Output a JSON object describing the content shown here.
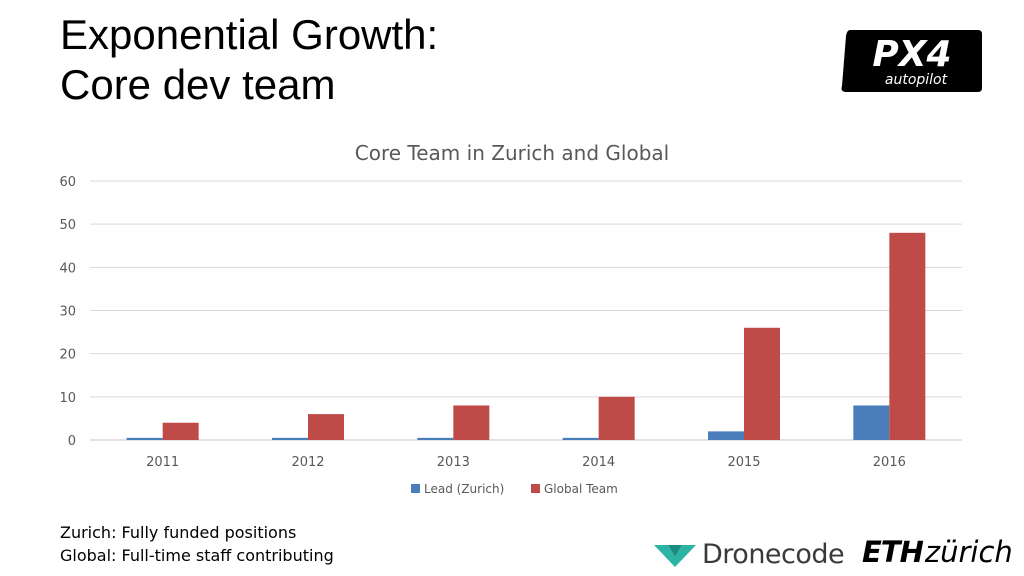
{
  "slide": {
    "title_line1": "Exponential Growth:",
    "title_line2": "Core dev team"
  },
  "logos": {
    "px4_main": "PX4",
    "px4_sub": "autopilot",
    "dronecode": "Dronecode",
    "eth_bold": "ETH",
    "eth_light": "zürich"
  },
  "notes": [
    "Zurich: Fully funded positions",
    "Global: Full-time staff contributing"
  ],
  "colors": {
    "lead": "#4a7ebb",
    "global": "#be4b48",
    "grid": "#d9d9d9",
    "dronecode": "#2bb3a3"
  },
  "chart_data": {
    "type": "bar",
    "title": "Core Team in Zurich and Global",
    "xlabel": "",
    "ylabel": "",
    "categories": [
      "2011",
      "2012",
      "2013",
      "2014",
      "2015",
      "2016"
    ],
    "series": [
      {
        "name": "Lead (Zurich)",
        "values": [
          0.5,
          0.5,
          0.5,
          0.5,
          2,
          8
        ]
      },
      {
        "name": "Global Team",
        "values": [
          4,
          6,
          8,
          10,
          26,
          48
        ]
      }
    ],
    "ylim": [
      0,
      60
    ],
    "yticks": [
      0,
      10,
      20,
      30,
      40,
      50,
      60
    ],
    "grid": true,
    "legend": "bottom"
  }
}
